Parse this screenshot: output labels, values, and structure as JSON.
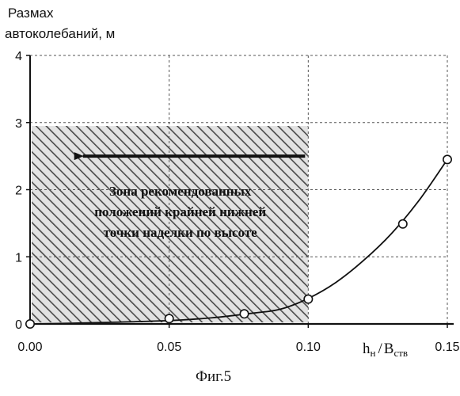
{
  "chart_data": {
    "type": "scatter",
    "ylabel_lines": [
      "Размах",
      "автоколебаний, м"
    ],
    "xlabel": {
      "main1": "h",
      "sub1": "н",
      "slash": "/",
      "main2": "B",
      "sub2": "ств"
    },
    "xlim": [
      0,
      0.15
    ],
    "ylim": [
      0,
      4
    ],
    "x_ticks": [
      {
        "value": 0,
        "label": "0.00"
      },
      {
        "value": 0.05,
        "label": "0.05"
      },
      {
        "value": 0.1,
        "label": "0.10"
      },
      {
        "value": 0.15,
        "label": "0.15"
      }
    ],
    "y_ticks": [
      {
        "value": 0,
        "label": "0"
      },
      {
        "value": 1,
        "label": "1"
      },
      {
        "value": 2,
        "label": "2"
      },
      {
        "value": 3,
        "label": "3"
      },
      {
        "value": 4,
        "label": "4"
      }
    ],
    "grid": true,
    "series": [
      {
        "points": [
          {
            "x": 0.0,
            "y": 0.0
          },
          {
            "x": 0.05,
            "y": 0.08
          },
          {
            "x": 0.077,
            "y": 0.15
          },
          {
            "x": 0.1,
            "y": 0.37
          },
          {
            "x": 0.134,
            "y": 1.49
          },
          {
            "x": 0.15,
            "y": 2.45
          }
        ],
        "curve": [
          {
            "x": 0.0,
            "y": 0.0
          },
          {
            "x": 0.025,
            "y": 0.02
          },
          {
            "x": 0.05,
            "y": 0.05
          },
          {
            "x": 0.065,
            "y": 0.09
          },
          {
            "x": 0.08,
            "y": 0.16
          },
          {
            "x": 0.09,
            "y": 0.22
          },
          {
            "x": 0.1,
            "y": 0.38
          },
          {
            "x": 0.11,
            "y": 0.62
          },
          {
            "x": 0.12,
            "y": 0.95
          },
          {
            "x": 0.13,
            "y": 1.35
          },
          {
            "x": 0.14,
            "y": 1.85
          },
          {
            "x": 0.15,
            "y": 2.45
          }
        ]
      }
    ],
    "zone": {
      "x_range": [
        0,
        0.1
      ],
      "y_range": [
        0,
        2.95
      ],
      "arrow_y": 2.5,
      "arrow_x_from": 0.1,
      "arrow_x_to": 0.015,
      "text_lines": [
        "Зона рекомендованных",
        "положений крайней нижней",
        "точки наделки по высоте"
      ]
    },
    "caption": "Фиг.5",
    "colors": {
      "ink": "#111111",
      "hatch": "#555555",
      "grid": "#555555"
    }
  }
}
